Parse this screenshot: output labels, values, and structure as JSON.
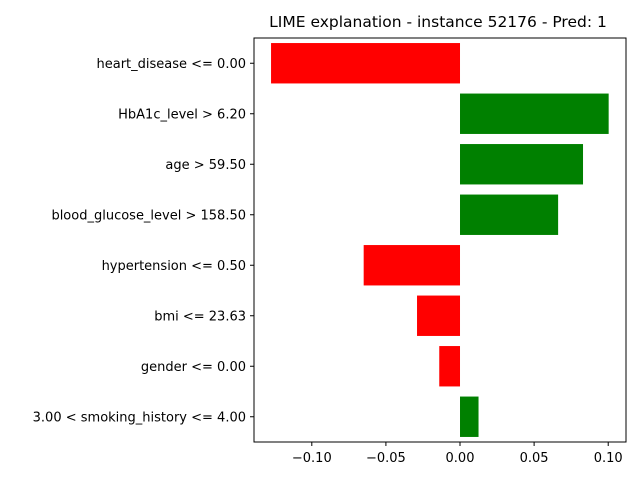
{
  "chart_data": {
    "type": "bar",
    "orientation": "horizontal",
    "title": "LIME explanation - instance 52176 - Pred: 1",
    "xlabel": "",
    "ylabel": "",
    "xlim": [
      -0.139,
      0.112
    ],
    "xticks": [
      -0.1,
      -0.05,
      0.0,
      0.05,
      0.1
    ],
    "xtick_labels": [
      "−0.10",
      "−0.05",
      "0.00",
      "0.05",
      "0.10"
    ],
    "grid": false,
    "categories": [
      "heart_disease <= 0.00",
      "HbA1c_level > 6.20",
      "age > 59.50",
      "blood_glucose_level > 158.50",
      "hypertension <= 0.50",
      "bmi <= 23.63",
      "gender <= 0.00",
      "3.00 < smoking_history <= 4.00"
    ],
    "values": [
      -0.1275,
      0.1003,
      0.083,
      0.0662,
      -0.065,
      -0.029,
      -0.014,
      0.0125
    ],
    "colors": {
      "positive": "#008000",
      "negative": "#ff0000"
    }
  }
}
